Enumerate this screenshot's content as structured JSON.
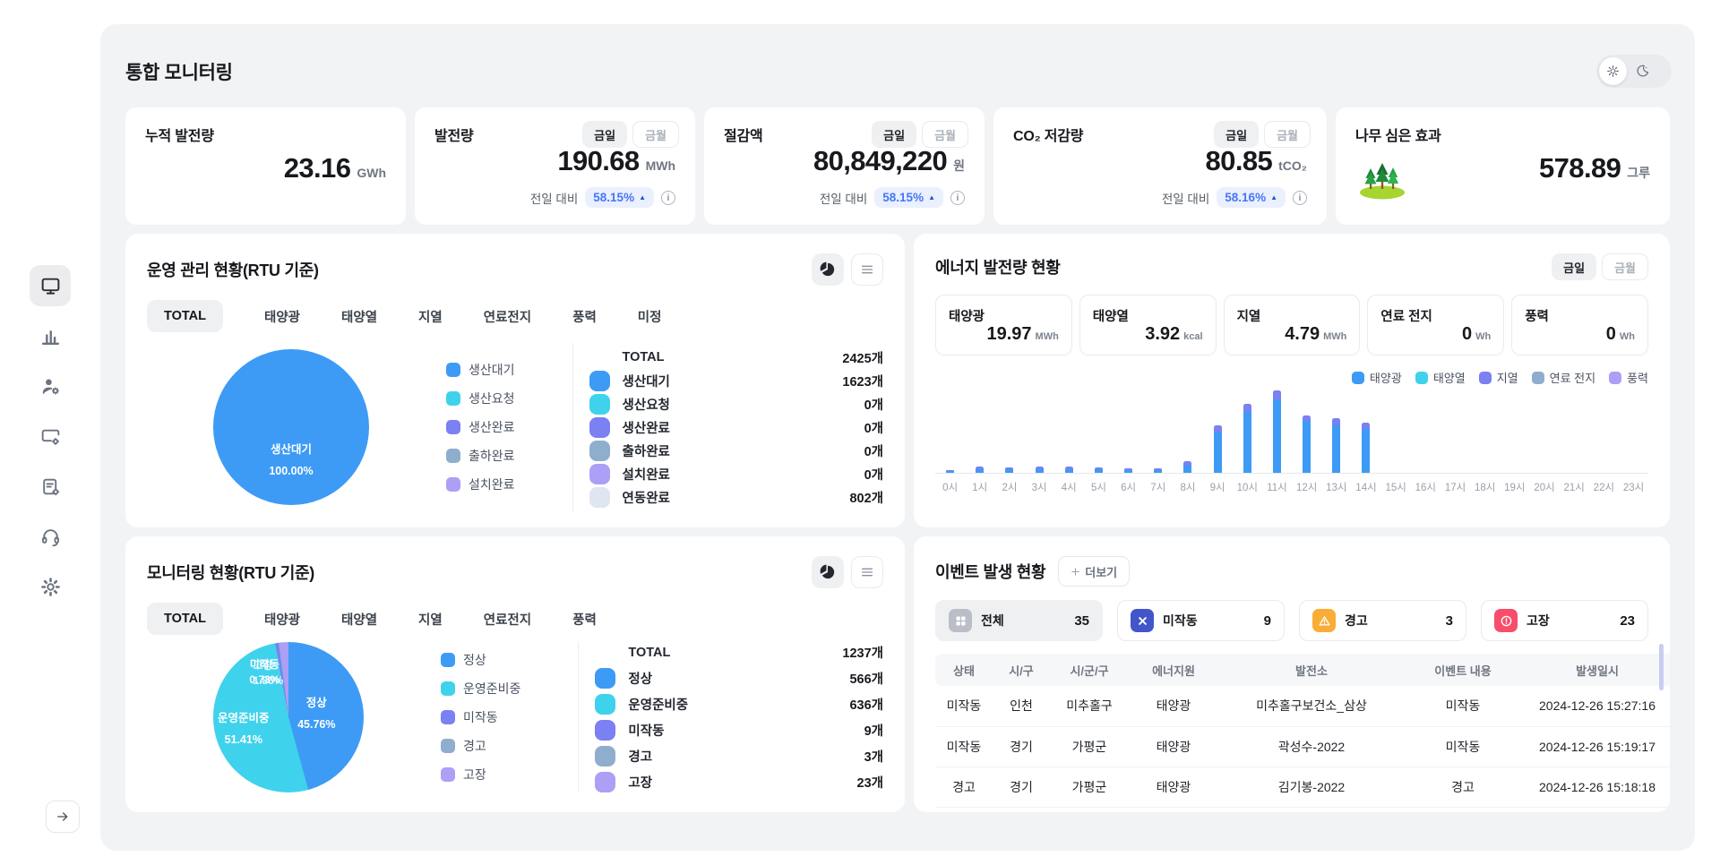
{
  "page": {
    "title": "통합 모니터링"
  },
  "sidebar": {
    "items": [
      "monitoring",
      "statistics",
      "members",
      "devices",
      "reports",
      "support",
      "settings"
    ]
  },
  "stat_cards": {
    "cumulative": {
      "title": "누적 발전량",
      "value": "23.16",
      "unit": "GWh"
    },
    "generation": {
      "title": "발전량",
      "value": "190.68",
      "unit": "MWh",
      "toggle": [
        "금일",
        "금월"
      ],
      "delta_label": "전일 대비",
      "delta": "58.15%"
    },
    "savings": {
      "title": "절감액",
      "value": "80,849,220",
      "unit": "원",
      "toggle": [
        "금일",
        "금월"
      ],
      "delta_label": "전일 대비",
      "delta": "58.15%"
    },
    "co2": {
      "title": "CO₂ 저감량",
      "value": "80.85",
      "unit": "tCO₂",
      "toggle": [
        "금일",
        "금월"
      ],
      "delta_label": "전일 대비",
      "delta": "58.16%"
    },
    "trees": {
      "title": "나무 심은 효과",
      "value": "578.89",
      "unit": "그루"
    }
  },
  "ops_panel": {
    "title": "운영 관리 현황(RTU 기준)",
    "tabs": [
      {
        "label": "TOTAL",
        "active": true
      },
      {
        "label": "태양광"
      },
      {
        "label": "태양열"
      },
      {
        "label": "지열"
      },
      {
        "label": "연료전지"
      },
      {
        "label": "풍력"
      },
      {
        "label": "미정"
      }
    ],
    "pie": {
      "slices": [
        {
          "color": "#3D9BF5",
          "from": 0,
          "to": 360
        }
      ],
      "label": "생산대기",
      "percent": "100.00%"
    },
    "legend": [
      {
        "label": "생산대기",
        "color": "#3D9BF5"
      },
      {
        "label": "생산요청",
        "color": "#3FD2EC"
      },
      {
        "label": "생산완료",
        "color": "#7B80F2"
      },
      {
        "label": "출하완료",
        "color": "#8FAECE"
      },
      {
        "label": "설치완료",
        "color": "#AC9FF6"
      }
    ],
    "list": [
      {
        "label": "TOTAL",
        "value": "2425개",
        "color": ""
      },
      {
        "label": "생산대기",
        "value": "1623개",
        "color": "#3D9BF5"
      },
      {
        "label": "생산요청",
        "value": "0개",
        "color": "#3FD2EC"
      },
      {
        "label": "생산완료",
        "value": "0개",
        "color": "#7B80F2"
      },
      {
        "label": "출하완료",
        "value": "0개",
        "color": "#8FAECE"
      },
      {
        "label": "설치완료",
        "value": "0개",
        "color": "#AC9FF6"
      },
      {
        "label": "연동완료",
        "value": "802개",
        "color": "#DFE6F2"
      }
    ]
  },
  "energy_panel": {
    "title": "에너지 발전량 현황",
    "toggle": [
      "금일",
      "금월"
    ],
    "cards": [
      {
        "label": "태양광",
        "value": "19.97",
        "unit": "MWh"
      },
      {
        "label": "태양열",
        "value": "3.92",
        "unit": "kcal"
      },
      {
        "label": "지열",
        "value": "4.79",
        "unit": "MWh"
      },
      {
        "label": "연료 전지",
        "value": "0",
        "unit": "Wh"
      },
      {
        "label": "풍력",
        "value": "0",
        "unit": "Wh"
      }
    ],
    "legend": [
      {
        "label": "태양광",
        "color": "#3D9BF5"
      },
      {
        "label": "태양열",
        "color": "#3FD2EC"
      },
      {
        "label": "지열",
        "color": "#7B80F2"
      },
      {
        "label": "연료 전지",
        "color": "#8FAECE"
      },
      {
        "label": "풍력",
        "color": "#AC9FF6"
      }
    ],
    "chart_data": {
      "type": "bar",
      "stacked": true,
      "x": [
        "0시",
        "1시",
        "2시",
        "3시",
        "4시",
        "5시",
        "6시",
        "7시",
        "8시",
        "9시",
        "10시",
        "11시",
        "12시",
        "13시",
        "14시",
        "15시",
        "16시",
        "17시",
        "18시",
        "19시",
        "20시",
        "21시",
        "22시",
        "23시"
      ],
      "series": [
        {
          "name": "태양광",
          "color": "#3D9BF5",
          "values": [
            2,
            4,
            4,
            4,
            4,
            4,
            3,
            3,
            8,
            45,
            68,
            82,
            58,
            53,
            49,
            0,
            0,
            0,
            0,
            0,
            0,
            0,
            0,
            0
          ]
        },
        {
          "name": "지열",
          "color": "#7B80F2",
          "values": [
            1,
            3,
            2,
            3,
            3,
            2,
            2,
            2,
            5,
            8,
            9,
            10,
            6,
            8,
            7,
            0,
            0,
            0,
            0,
            0,
            0,
            0,
            0,
            0
          ]
        }
      ],
      "unit": "relative height (px of 96px plot, y-axis hidden)",
      "legend_position": "top-right",
      "grid": false
    }
  },
  "monitor_panel": {
    "title": "모니터링 현황(RTU 기준)",
    "tabs": [
      {
        "label": "TOTAL",
        "active": true
      },
      {
        "label": "태양광"
      },
      {
        "label": "태양열"
      },
      {
        "label": "지열"
      },
      {
        "label": "연료전지"
      },
      {
        "label": "풍력"
      }
    ],
    "pie": {
      "slices": [
        {
          "color": "#3D9BF5",
          "from": 0,
          "to": 164.7
        },
        {
          "color": "#3FD2EC",
          "from": 164.7,
          "to": 349.8
        },
        {
          "color": "#7B80F2",
          "from": 349.8,
          "to": 352.4
        },
        {
          "color": "#8FAECE",
          "from": 352.4,
          "to": 353.3
        },
        {
          "color": "#AC9FF6",
          "from": 353.3,
          "to": 360
        }
      ],
      "normal_label": "정상",
      "normal_percent": "45.76%",
      "prep_label": "운영준비중",
      "prep_percent": "51.41%",
      "clutter_word1": "미작동",
      "clutter_word2": "고장",
      "clutter_pct1": "0.73%",
      "clutter_pct2": "1.86%"
    },
    "legend": [
      {
        "label": "정상",
        "color": "#3D9BF5"
      },
      {
        "label": "운영준비중",
        "color": "#3FD2EC"
      },
      {
        "label": "미작동",
        "color": "#7B80F2"
      },
      {
        "label": "경고",
        "color": "#8FAECE"
      },
      {
        "label": "고장",
        "color": "#AC9FF6"
      }
    ],
    "list": [
      {
        "label": "TOTAL",
        "value": "1237개",
        "color": ""
      },
      {
        "label": "정상",
        "value": "566개",
        "color": "#3D9BF5"
      },
      {
        "label": "운영준비중",
        "value": "636개",
        "color": "#3FD2EC"
      },
      {
        "label": "미작동",
        "value": "9개",
        "color": "#7B80F2"
      },
      {
        "label": "경고",
        "value": "3개",
        "color": "#8FAECE"
      },
      {
        "label": "고장",
        "value": "23개",
        "color": "#AC9FF6"
      }
    ]
  },
  "event_panel": {
    "title": "이벤트 발생 현황",
    "more_label": "더보기",
    "filters": [
      {
        "label": "전체",
        "count": "35",
        "icon": "grid-icon",
        "icon_color": "#B9BEC7",
        "active": true
      },
      {
        "label": "미작동",
        "count": "9",
        "icon": "x-icon",
        "icon_color": "#4356C9"
      },
      {
        "label": "경고",
        "count": "3",
        "icon": "warning-icon",
        "icon_color": "#F9AD37"
      },
      {
        "label": "고장",
        "count": "23",
        "icon": "error-icon",
        "icon_color": "#F64E6B"
      }
    ],
    "table": {
      "headers": [
        "상태",
        "시/구",
        "시/군/구",
        "에너지원",
        "발전소",
        "이벤트 내용",
        "발생일시"
      ],
      "rows": [
        [
          "미작동",
          "인천",
          "미추홀구",
          "태양광",
          "미추홀구보건소_삼상",
          "미작동",
          "2024-12-26 15:27:16"
        ],
        [
          "미작동",
          "경기",
          "가평군",
          "태양광",
          "곽성수-2022",
          "미작동",
          "2024-12-26 15:19:17"
        ],
        [
          "경고",
          "경기",
          "가평군",
          "태양광",
          "김기봉-2022",
          "경고",
          "2024-12-26 15:18:18"
        ]
      ]
    }
  },
  "colors": {
    "accent_blue": "#3D9BF5",
    "cyan": "#3FD2EC",
    "periwinkle": "#7B80F2",
    "gray_blue": "#8FAECE",
    "lavender": "#AC9FF6",
    "light_chip": "#DFE6F2",
    "badge_bg": "#EBF0FE",
    "badge_text": "#4776F6",
    "main_bg": "#F2F3F5"
  }
}
